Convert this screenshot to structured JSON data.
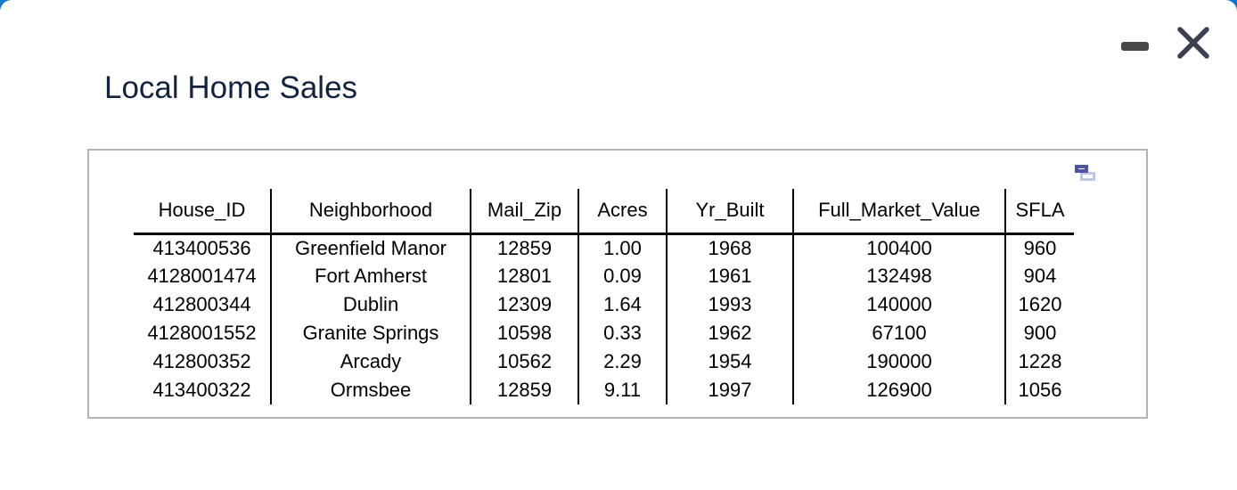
{
  "window": {
    "title": "Local Home Sales",
    "controls": {
      "minimize_icon": "minimize-dash",
      "close_icon": "close-x"
    }
  },
  "panel": {
    "popout_icon": "duplicate-window-icon"
  },
  "table": {
    "columns": [
      "House_ID",
      "Neighborhood",
      "Mail_Zip",
      "Acres",
      "Yr_Built",
      "Full_Market_Value",
      "SFLA"
    ],
    "rows": [
      [
        "413400536",
        "Greenfield Manor",
        "12859",
        "1.00",
        "1968",
        "100400",
        "960"
      ],
      [
        "4128001474",
        "Fort Amherst",
        "12801",
        "0.09",
        "1961",
        "132498",
        "904"
      ],
      [
        "412800344",
        "Dublin",
        "12309",
        "1.64",
        "1993",
        "140000",
        "1620"
      ],
      [
        "4128001552",
        "Granite Springs",
        "10598",
        "0.33",
        "1962",
        "67100",
        "900"
      ],
      [
        "412800352",
        "Arcady",
        "10562",
        "2.29",
        "1954",
        "190000",
        "1228"
      ],
      [
        "413400322",
        "Ormsbee",
        "12859",
        "9.11",
        "1997",
        "126900",
        "1056"
      ]
    ]
  },
  "colors": {
    "background_blue": "#1078d2",
    "title_text": "#13233f",
    "panel_border": "#b3b3b3",
    "table_text": "#000000",
    "close_icon": "#3a4150",
    "minimize_icon": "#474747",
    "popout_front": "#4d55a0",
    "popout_back": "#c0c5e2"
  }
}
